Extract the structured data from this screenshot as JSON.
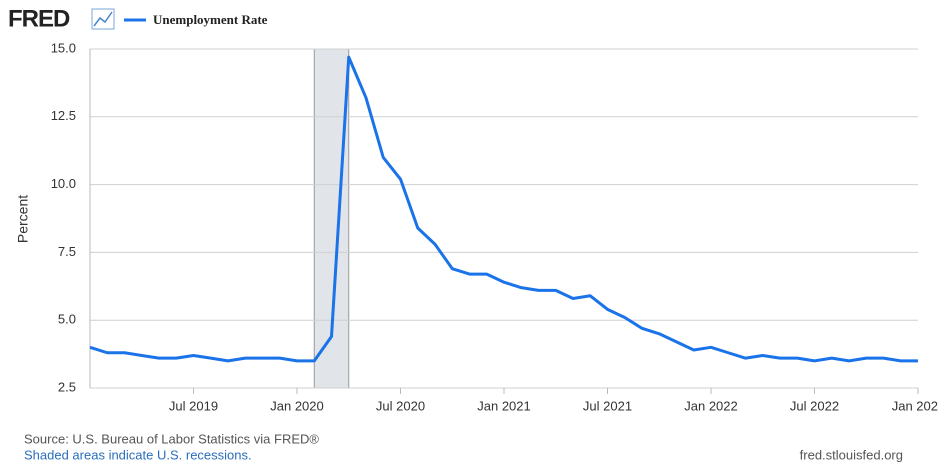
{
  "chart_data": {
    "type": "line",
    "logo": "FRED",
    "ylabel": "Percent",
    "source": "Source: U.S. Bureau of Labor Statistics via FRED®",
    "recession_note": "Shaded areas indicate U.S. recessions.",
    "site": "fred.stlouisfed.org",
    "x": [
      "2019-01",
      "2019-02",
      "2019-03",
      "2019-04",
      "2019-05",
      "2019-06",
      "2019-07",
      "2019-08",
      "2019-09",
      "2019-10",
      "2019-11",
      "2019-12",
      "2020-01",
      "2020-02",
      "2020-03",
      "2020-04",
      "2020-05",
      "2020-06",
      "2020-07",
      "2020-08",
      "2020-09",
      "2020-10",
      "2020-11",
      "2020-12",
      "2021-01",
      "2021-02",
      "2021-03",
      "2021-04",
      "2021-05",
      "2021-06",
      "2021-07",
      "2021-08",
      "2021-09",
      "2021-10",
      "2021-11",
      "2021-12",
      "2022-01",
      "2022-02",
      "2022-03",
      "2022-04",
      "2022-05",
      "2022-06",
      "2022-07",
      "2022-08",
      "2022-09",
      "2022-10",
      "2022-11",
      "2022-12",
      "2023-01"
    ],
    "series": [
      {
        "name": "Unemployment Rate",
        "color": "#1a73e8",
        "values": [
          4.0,
          3.8,
          3.8,
          3.7,
          3.6,
          3.6,
          3.7,
          3.6,
          3.5,
          3.6,
          3.6,
          3.6,
          3.5,
          3.5,
          4.4,
          14.7,
          13.2,
          11.0,
          10.2,
          8.4,
          7.8,
          6.9,
          6.7,
          6.7,
          6.4,
          6.2,
          6.1,
          6.1,
          5.8,
          5.9,
          5.4,
          5.1,
          4.7,
          4.5,
          4.2,
          3.9,
          4.0,
          3.8,
          3.6,
          3.7,
          3.6,
          3.6,
          3.5,
          3.6,
          3.5,
          3.6,
          3.6,
          3.5,
          3.5
        ]
      }
    ],
    "recessions": [
      {
        "start": "2020-02",
        "end": "2020-04"
      }
    ],
    "xlim": [
      "2019-01",
      "2023-01"
    ],
    "xticks": [
      {
        "value": "2019-07",
        "label": "Jul 2019"
      },
      {
        "value": "2020-01",
        "label": "Jan 2020"
      },
      {
        "value": "2020-07",
        "label": "Jul 2020"
      },
      {
        "value": "2021-01",
        "label": "Jan 2021"
      },
      {
        "value": "2021-07",
        "label": "Jul 2021"
      },
      {
        "value": "2022-01",
        "label": "Jan 2022"
      },
      {
        "value": "2022-07",
        "label": "Jul 2022"
      },
      {
        "value": "2023-01",
        "label": "Jan 202"
      }
    ],
    "ylim": [
      2.5,
      15
    ],
    "yticks": [
      {
        "value": 2.5,
        "label": "2.5"
      },
      {
        "value": 5,
        "label": "5.0"
      },
      {
        "value": 7.5,
        "label": "7.5"
      },
      {
        "value": 10,
        "label": "10.0"
      },
      {
        "value": 12.5,
        "label": "12.5"
      },
      {
        "value": 15,
        "label": "15.0"
      }
    ],
    "grid": true
  }
}
